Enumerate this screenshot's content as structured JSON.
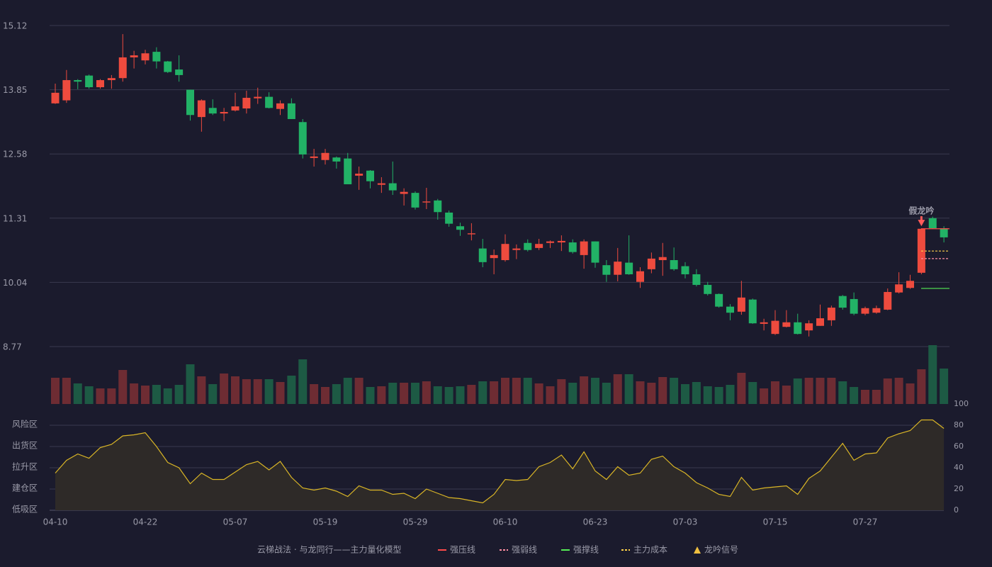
{
  "chart_data": [
    {
      "type": "candlestick",
      "categories": [
        "04-10",
        null,
        null,
        null,
        null,
        null,
        null,
        null,
        "04-22",
        null,
        null,
        null,
        null,
        null,
        null,
        null,
        "05-07",
        null,
        null,
        null,
        null,
        null,
        null,
        null,
        "05-19",
        null,
        null,
        null,
        null,
        null,
        null,
        null,
        "05-29",
        null,
        null,
        null,
        null,
        null,
        null,
        null,
        "06-10",
        null,
        null,
        null,
        null,
        null,
        null,
        null,
        "06-23",
        null,
        null,
        null,
        null,
        null,
        null,
        null,
        "07-03",
        null,
        null,
        null,
        null,
        null,
        null,
        null,
        "07-15",
        null,
        null,
        null,
        null,
        null,
        null,
        null,
        "07-27",
        null,
        null,
        null,
        null,
        null,
        null,
        null
      ],
      "open": [
        13.58,
        13.64,
        14.04,
        14.13,
        13.9,
        14.04,
        14.08,
        14.49,
        14.43,
        14.6,
        14.41,
        14.25,
        13.85,
        13.31,
        13.49,
        13.38,
        13.44,
        13.48,
        13.68,
        13.71,
        13.47,
        13.58,
        13.21,
        12.5,
        12.46,
        12.51,
        12.49,
        12.15,
        12.25,
        11.97,
        12.0,
        11.79,
        11.81,
        11.62,
        11.66,
        11.42,
        11.15,
        10.99,
        10.71,
        10.52,
        10.48,
        10.68,
        10.82,
        10.72,
        10.82,
        10.83,
        10.83,
        10.58,
        10.85,
        10.38,
        10.19,
        10.43,
        10.05,
        10.3,
        10.48,
        10.48,
        10.36,
        10.2,
        9.99,
        9.81,
        9.56,
        9.46,
        9.7,
        9.22,
        9.02,
        9.16,
        9.25,
        9.09,
        9.18,
        9.29,
        9.77,
        9.71,
        9.42,
        9.44,
        9.5,
        9.84,
        9.93,
        10.23,
        11.31,
        11.11
      ],
      "high": [
        13.97,
        14.24,
        14.06,
        14.15,
        14.06,
        14.14,
        14.95,
        14.62,
        14.64,
        14.69,
        14.42,
        14.53,
        13.85,
        13.66,
        13.66,
        13.49,
        13.79,
        13.83,
        13.89,
        13.8,
        13.64,
        13.68,
        13.27,
        12.68,
        12.68,
        12.53,
        12.6,
        12.33,
        12.26,
        12.12,
        12.43,
        11.9,
        11.84,
        11.91,
        11.69,
        11.46,
        11.22,
        11.21,
        10.9,
        10.69,
        10.99,
        10.79,
        10.89,
        10.9,
        10.87,
        10.97,
        10.89,
        10.89,
        10.85,
        10.48,
        10.72,
        10.97,
        10.34,
        10.63,
        10.82,
        10.73,
        10.44,
        10.3,
        10.05,
        9.82,
        9.61,
        10.07,
        9.72,
        9.32,
        9.49,
        9.49,
        9.42,
        9.29,
        9.6,
        9.58,
        9.79,
        9.84,
        9.56,
        9.58,
        9.92,
        10.24,
        10.19,
        11.11,
        11.34,
        11.15
      ],
      "low": [
        13.57,
        13.59,
        13.86,
        13.87,
        13.87,
        13.87,
        14.01,
        14.27,
        14.35,
        14.27,
        14.18,
        14.01,
        13.24,
        13.02,
        13.35,
        13.23,
        13.42,
        13.38,
        13.57,
        13.48,
        13.35,
        13.27,
        12.49,
        12.33,
        12.37,
        12.29,
        11.98,
        11.87,
        11.9,
        11.81,
        11.77,
        11.56,
        11.48,
        11.49,
        11.28,
        11.14,
        10.96,
        10.87,
        10.34,
        10.2,
        10.45,
        10.5,
        10.65,
        10.68,
        10.72,
        10.66,
        10.61,
        10.31,
        10.33,
        10.05,
        10.06,
        10.19,
        9.93,
        10.22,
        10.17,
        10.27,
        10.12,
        9.96,
        9.78,
        9.54,
        9.29,
        9.4,
        9.22,
        9.09,
        9.0,
        9.15,
        9.01,
        8.97,
        9.18,
        9.18,
        9.5,
        9.39,
        9.39,
        9.42,
        9.49,
        9.82,
        9.91,
        10.2,
        11.1,
        10.83
      ],
      "close": [
        13.79,
        14.04,
        14.01,
        13.9,
        14.04,
        14.08,
        14.49,
        14.53,
        14.57,
        14.41,
        14.2,
        14.14,
        13.35,
        13.64,
        13.38,
        13.41,
        13.52,
        13.69,
        13.71,
        13.49,
        13.58,
        13.27,
        12.57,
        12.53,
        12.6,
        12.43,
        11.98,
        12.19,
        12.04,
        12.0,
        11.86,
        11.83,
        11.52,
        11.64,
        11.43,
        11.2,
        11.08,
        11.01,
        10.44,
        10.58,
        10.8,
        10.71,
        10.68,
        10.8,
        10.85,
        10.86,
        10.64,
        10.85,
        10.43,
        10.19,
        10.45,
        10.2,
        10.26,
        10.51,
        10.54,
        10.3,
        10.2,
        9.99,
        9.81,
        9.56,
        9.44,
        9.74,
        9.23,
        9.25,
        9.28,
        9.25,
        9.02,
        9.23,
        9.33,
        9.54,
        9.54,
        9.42,
        9.53,
        9.53,
        9.85,
        10.0,
        10.07,
        11.1,
        11.11,
        10.93
      ],
      "up_color": "#ee4b3e",
      "down_color": "#22b266",
      "ylim": [
        8.77,
        15.12
      ],
      "yticks": [
        8.77,
        10.04,
        11.31,
        12.58,
        13.85,
        15.12
      ],
      "grid": true,
      "annotations": [
        {
          "text": "假龙吟",
          "index": 77,
          "color": "#ff5a5a"
        }
      ],
      "legend": {
        "title": "云梯战法 · 与龙同行——主力量化模型",
        "title_color": "#f0c060",
        "items": [
          {
            "name": "强压线",
            "color": "#ff4a4a",
            "style": "solid",
            "value": 11.1
          },
          {
            "name": "强弱线",
            "color": "#ff8fa3",
            "style": "dashed",
            "value": 10.51
          },
          {
            "name": "强撑线",
            "color": "#55ee55",
            "style": "solid",
            "value": 9.92
          },
          {
            "name": "主力成本",
            "color": "#ffd24a",
            "style": "dashed",
            "value": 10.66
          },
          {
            "name": "龙吟信号",
            "color": "#f0c040",
            "style": "triangle"
          }
        ]
      }
    },
    {
      "type": "volume",
      "values": [
        37,
        37,
        29,
        25,
        22,
        22,
        48,
        29,
        26,
        27,
        22,
        27,
        56,
        39,
        28,
        43,
        39,
        35,
        35,
        35,
        31,
        40,
        63,
        28,
        24,
        28,
        37,
        37,
        24,
        25,
        30,
        30,
        30,
        32,
        25,
        24,
        25,
        27,
        32,
        32,
        37,
        37,
        37,
        29,
        25,
        35,
        30,
        39,
        37,
        30,
        42,
        42,
        32,
        30,
        38,
        37,
        28,
        31,
        25,
        24,
        27,
        44,
        31,
        22,
        32,
        26,
        36,
        37,
        37,
        37,
        32,
        24,
        20,
        20,
        36,
        37,
        29,
        49,
        83,
        50
      ],
      "up_color": "#6e2c33",
      "down_color": "#1d5a44"
    },
    {
      "type": "area",
      "values": [
        35,
        47,
        53,
        49,
        59,
        62,
        70,
        71,
        73,
        60,
        45,
        40,
        25,
        35,
        29,
        29,
        36,
        43,
        46,
        38,
        46,
        31,
        21,
        19,
        21,
        18,
        13,
        23,
        19,
        19,
        15,
        16,
        11,
        20,
        16,
        12,
        11,
        9,
        7,
        15,
        29,
        28,
        29,
        41,
        45,
        52,
        39,
        55,
        37,
        29,
        41,
        33,
        35,
        48,
        51,
        41,
        35,
        26,
        21,
        15,
        13,
        31,
        19,
        21,
        22,
        23,
        15,
        30,
        37,
        50,
        63,
        47,
        53,
        54,
        68,
        72,
        75,
        85,
        85,
        77
      ],
      "color": "#d9b526",
      "fill": "#2e2a28",
      "ylim": [
        0,
        100
      ],
      "yticks": [
        0,
        20,
        40,
        60,
        80,
        100
      ],
      "ytick_colors": [
        "#ff4040",
        "#ff7040",
        "#3c8cff",
        "#e040e0",
        "#f0a030",
        "#33dd33"
      ],
      "zones": [
        {
          "label": "低吸区",
          "value": 0,
          "color": "#ff4040"
        },
        {
          "label": "建仓区",
          "value": 20,
          "color": "#ff7040"
        },
        {
          "label": "拉升区",
          "value": 40,
          "color": "#3c8cff"
        },
        {
          "label": "出货区",
          "value": 60,
          "color": "#e040e0"
        },
        {
          "label": "风险区",
          "value": 80,
          "color": "#f0a030"
        }
      ]
    }
  ]
}
